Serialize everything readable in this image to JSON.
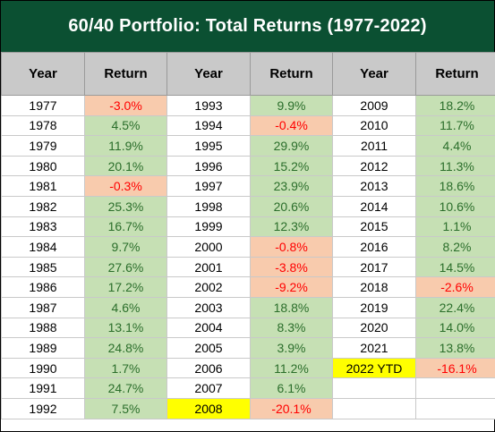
{
  "title": "60/40 Portfolio: Total Returns (1977-2022)",
  "headers": [
    "Year",
    "Return",
    "Year",
    "Return",
    "Year",
    "Return"
  ],
  "chart_data": {
    "type": "table",
    "title": "60/40 Portfolio: Total Returns (1977-2022)",
    "columns": [
      "Year",
      "Return"
    ],
    "rows": [
      {
        "year": "1977",
        "ret": "-3.0%",
        "value": -3.0
      },
      {
        "year": "1978",
        "ret": "4.5%",
        "value": 4.5
      },
      {
        "year": "1979",
        "ret": "11.9%",
        "value": 11.9
      },
      {
        "year": "1980",
        "ret": "20.1%",
        "value": 20.1
      },
      {
        "year": "1981",
        "ret": "-0.3%",
        "value": -0.3
      },
      {
        "year": "1982",
        "ret": "25.3%",
        "value": 25.3
      },
      {
        "year": "1983",
        "ret": "16.7%",
        "value": 16.7
      },
      {
        "year": "1984",
        "ret": "9.7%",
        "value": 9.7
      },
      {
        "year": "1985",
        "ret": "27.6%",
        "value": 27.6
      },
      {
        "year": "1986",
        "ret": "17.2%",
        "value": 17.2
      },
      {
        "year": "1987",
        "ret": "4.6%",
        "value": 4.6
      },
      {
        "year": "1988",
        "ret": "13.1%",
        "value": 13.1
      },
      {
        "year": "1989",
        "ret": "24.8%",
        "value": 24.8
      },
      {
        "year": "1990",
        "ret": "1.7%",
        "value": 1.7
      },
      {
        "year": "1991",
        "ret": "24.7%",
        "value": 24.7
      },
      {
        "year": "1992",
        "ret": "7.5%",
        "value": 7.5
      },
      {
        "year": "1993",
        "ret": "9.9%",
        "value": 9.9
      },
      {
        "year": "1994",
        "ret": "-0.4%",
        "value": -0.4
      },
      {
        "year": "1995",
        "ret": "29.9%",
        "value": 29.9
      },
      {
        "year": "1996",
        "ret": "15.2%",
        "value": 15.2
      },
      {
        "year": "1997",
        "ret": "23.9%",
        "value": 23.9
      },
      {
        "year": "1998",
        "ret": "20.6%",
        "value": 20.6
      },
      {
        "year": "1999",
        "ret": "12.3%",
        "value": 12.3
      },
      {
        "year": "2000",
        "ret": "-0.8%",
        "value": -0.8
      },
      {
        "year": "2001",
        "ret": "-3.8%",
        "value": -3.8
      },
      {
        "year": "2002",
        "ret": "-9.2%",
        "value": -9.2
      },
      {
        "year": "2003",
        "ret": "18.8%",
        "value": 18.8
      },
      {
        "year": "2004",
        "ret": "8.3%",
        "value": 8.3
      },
      {
        "year": "2005",
        "ret": "3.9%",
        "value": 3.9
      },
      {
        "year": "2006",
        "ret": "11.2%",
        "value": 11.2
      },
      {
        "year": "2007",
        "ret": "6.1%",
        "value": 6.1
      },
      {
        "year": "2008",
        "ret": "-20.1%",
        "value": -20.1,
        "highlight": true
      },
      {
        "year": "2009",
        "ret": "18.2%",
        "value": 18.2
      },
      {
        "year": "2010",
        "ret": "11.7%",
        "value": 11.7
      },
      {
        "year": "2011",
        "ret": "4.4%",
        "value": 4.4
      },
      {
        "year": "2012",
        "ret": "11.3%",
        "value": 11.3
      },
      {
        "year": "2013",
        "ret": "18.6%",
        "value": 18.6
      },
      {
        "year": "2014",
        "ret": "10.6%",
        "value": 10.6
      },
      {
        "year": "2015",
        "ret": "1.1%",
        "value": 1.1
      },
      {
        "year": "2016",
        "ret": "8.2%",
        "value": 8.2
      },
      {
        "year": "2017",
        "ret": "14.5%",
        "value": 14.5
      },
      {
        "year": "2018",
        "ret": "-2.6%",
        "value": -2.6
      },
      {
        "year": "2019",
        "ret": "22.4%",
        "value": 22.4
      },
      {
        "year": "2020",
        "ret": "14.0%",
        "value": 14.0
      },
      {
        "year": "2021",
        "ret": "13.8%",
        "value": 13.8
      },
      {
        "year": "2022 YTD",
        "ret": "-16.1%",
        "value": -16.1,
        "highlight": true
      }
    ]
  },
  "colors": {
    "title_bg": "#0b5032",
    "header_bg": "#c9c9c9",
    "positive_bg": "#c6e0b4",
    "positive_text": "#2b6e2b",
    "negative_bg": "#f8cbad",
    "negative_text": "#ff0000",
    "highlight_bg": "#ffff00"
  }
}
